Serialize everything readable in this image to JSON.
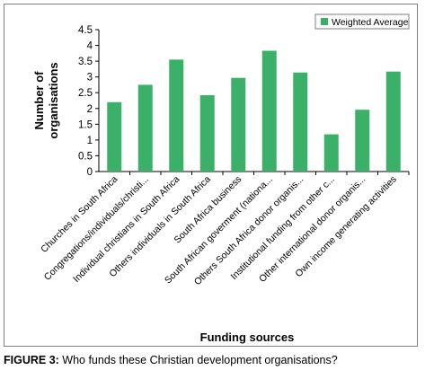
{
  "chart_data": {
    "type": "bar",
    "categories": [
      "Churches in South Africa",
      "Congregations/individuals/christi...",
      "Individual christians in South Africa",
      "Others individuals in South Africa",
      "South Africa business",
      "South African goverment (nationa...",
      "Others South Africa donor organis...",
      "Institutional funding from other c...",
      "Other international donor organis...",
      "Own income generating activities"
    ],
    "series": [
      {
        "name": "Weighted Average",
        "values": [
          2.2,
          2.75,
          3.55,
          2.42,
          2.97,
          3.83,
          3.14,
          1.18,
          1.96,
          3.17
        ]
      }
    ],
    "ylabel": "Number of organisations",
    "xlabel": "Funding sources",
    "ylim": [
      0,
      4.5
    ],
    "yticks": [
      "0",
      "0.5",
      "1",
      "1.5",
      "2",
      "2.5",
      "3",
      "3.5",
      "4",
      "4.5"
    ],
    "ytick_values": [
      0,
      0.5,
      1,
      1.5,
      2,
      2.5,
      3,
      3.5,
      4,
      4.5
    ],
    "legend_position": "top-right",
    "grid": false,
    "bar_color": "#3bb068"
  },
  "caption": {
    "label": "FIGURE 3:",
    "text": " Who funds these Christian development organisations?"
  }
}
